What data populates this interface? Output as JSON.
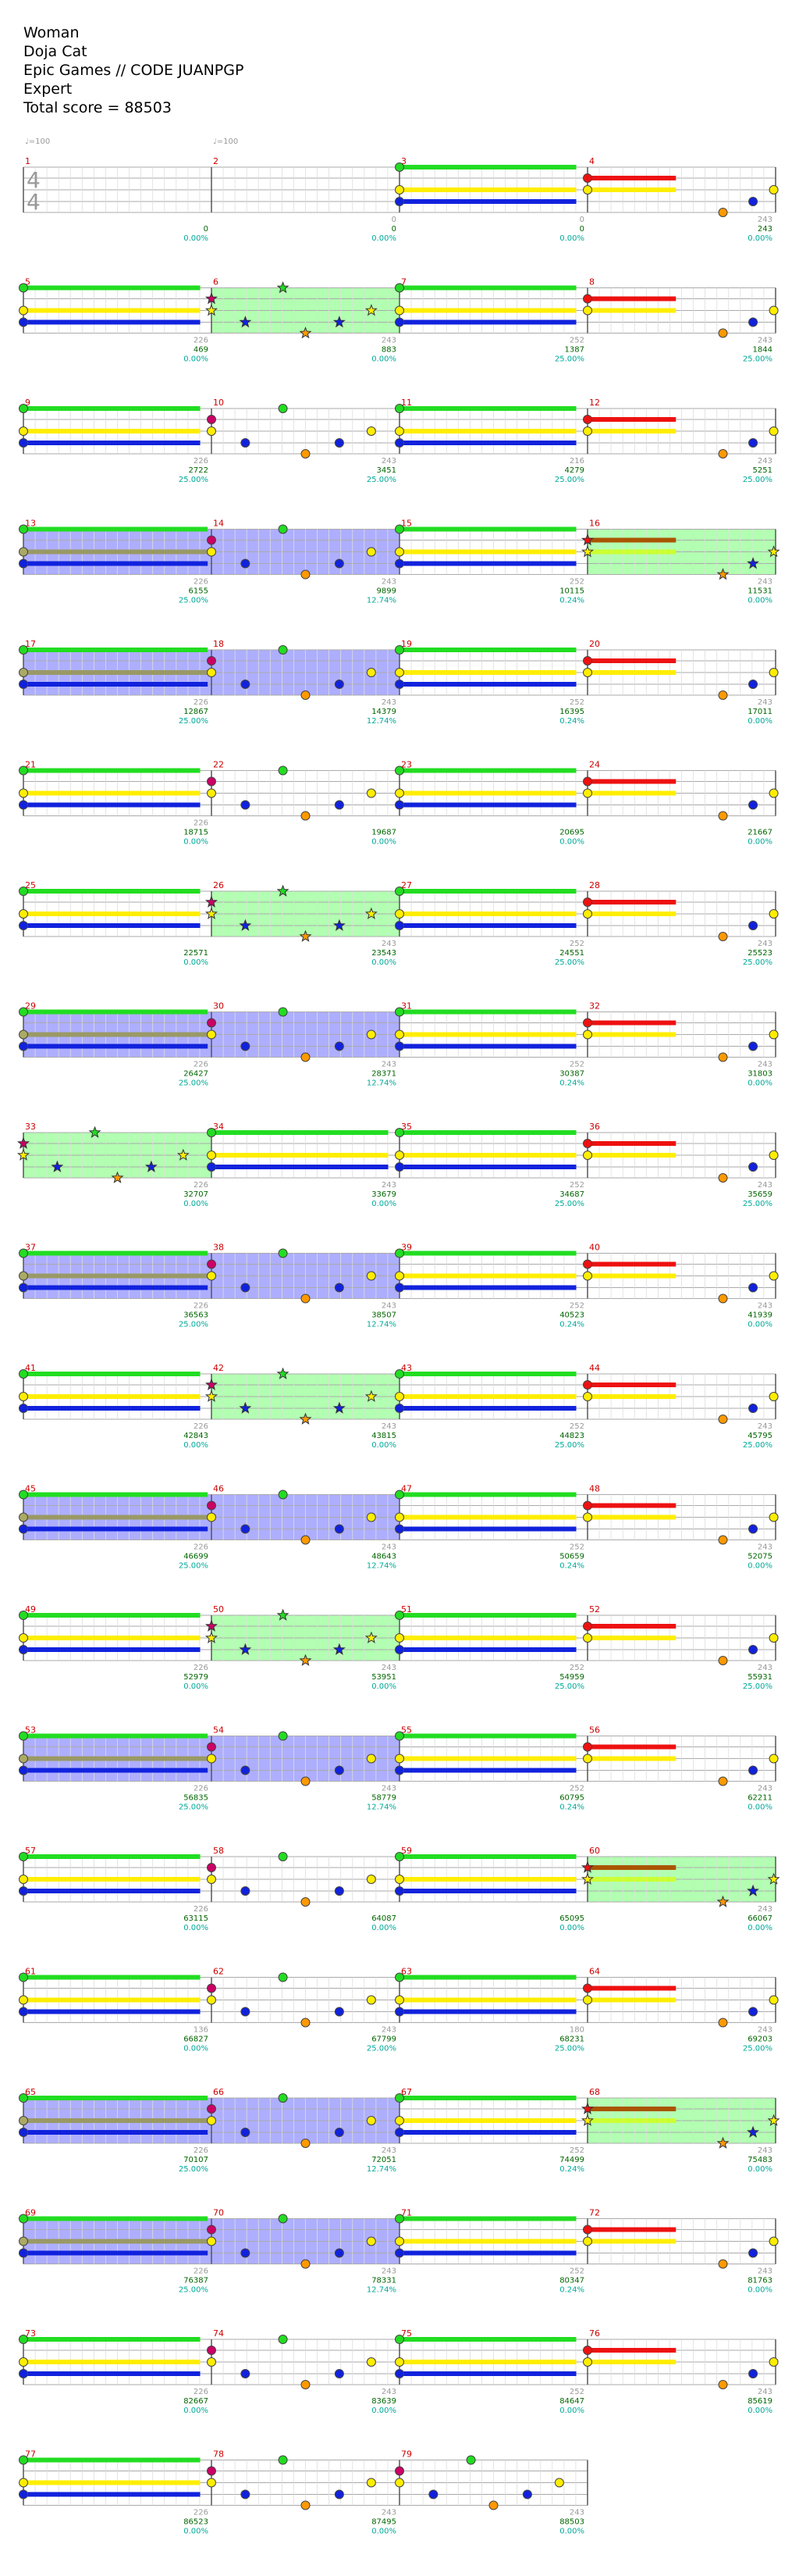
{
  "song": {
    "title": "Woman",
    "artist": "Doja Cat",
    "charter": "Epic Games // CODE JUANPGP",
    "difficulty": "Expert",
    "total_score_label": "Total score = 88503"
  },
  "tempo_markers": [
    {
      "measure": 1,
      "label": "♩=100"
    },
    {
      "measure": 2,
      "label": "♩=100"
    }
  ],
  "time_signature": {
    "measure": 1,
    "numerator": "4",
    "denominator": "4"
  },
  "lane_colors": {
    "green": "#22dd22",
    "red": "#ee1111",
    "yellow": "#ffee00",
    "blue": "#1122dd",
    "orange": "#ff9900"
  },
  "chart_data": {
    "type": "table",
    "columns": [
      "measure",
      "beat_count",
      "cumulative_score",
      "multiplier_label",
      "section"
    ],
    "rows_per_line": 4,
    "measures": [
      {
        "n": 1,
        "ticks": "",
        "score": "0",
        "pct": "0.00%",
        "bg": "none",
        "timesig": true
      },
      {
        "n": 2,
        "ticks": "0",
        "score": "0",
        "pct": "0.00%",
        "bg": "none"
      },
      {
        "n": 3,
        "ticks": "0",
        "score": "0",
        "pct": "0.00%",
        "bg": "none",
        "pat": "A"
      },
      {
        "n": 4,
        "ticks": "243",
        "score": "243",
        "pct": "0.00%",
        "bg": "none",
        "pat": "B"
      },
      {
        "n": 5,
        "ticks": "226",
        "score": "469",
        "pct": "0.00%",
        "bg": "none",
        "pat": "A"
      },
      {
        "n": 6,
        "ticks": "243",
        "score": "883",
        "pct": "0.00%",
        "bg": "green",
        "pat": "C"
      },
      {
        "n": 7,
        "ticks": "252",
        "score": "1387",
        "pct": "25.00%",
        "bg": "none",
        "pat": "A"
      },
      {
        "n": 8,
        "ticks": "243",
        "score": "1844",
        "pct": "25.00%",
        "bg": "none",
        "pat": "B"
      },
      {
        "n": 9,
        "ticks": "226",
        "score": "2722",
        "pct": "25.00%",
        "bg": "none",
        "pat": "A"
      },
      {
        "n": 10,
        "ticks": "243",
        "score": "3451",
        "pct": "25.00%",
        "bg": "none",
        "pat": "D"
      },
      {
        "n": 11,
        "ticks": "216",
        "score": "4279",
        "pct": "25.00%",
        "bg": "none",
        "pat": "A"
      },
      {
        "n": 12,
        "ticks": "243",
        "score": "5251",
        "pct": "25.00%",
        "bg": "none",
        "pat": "B"
      },
      {
        "n": 13,
        "ticks": "226",
        "score": "6155",
        "pct": "25.00%",
        "bg": "blue",
        "pat": "E"
      },
      {
        "n": 14,
        "ticks": "243",
        "score": "9899",
        "pct": "12.74%",
        "bg": "blue",
        "pat": "F"
      },
      {
        "n": 15,
        "ticks": "252",
        "score": "10115",
        "pct": "0.24%",
        "bg": "none",
        "pat": "A"
      },
      {
        "n": 16,
        "ticks": "243",
        "score": "11531",
        "pct": "0.00%",
        "bg": "green",
        "pat": "G"
      },
      {
        "n": 17,
        "ticks": "226",
        "score": "12867",
        "pct": "25.00%",
        "bg": "blue",
        "pat": "E"
      },
      {
        "n": 18,
        "ticks": "243",
        "score": "14379",
        "pct": "12.74%",
        "bg": "blue",
        "pat": "F"
      },
      {
        "n": 19,
        "ticks": "252",
        "score": "16395",
        "pct": "0.24%",
        "bg": "none",
        "pat": "A"
      },
      {
        "n": 20,
        "ticks": "243",
        "score": "17011",
        "pct": "0.00%",
        "bg": "none",
        "pat": "B"
      },
      {
        "n": 21,
        "ticks": "226",
        "score": "18715",
        "pct": "0.00%",
        "bg": "none",
        "pat": "A"
      },
      {
        "n": 22,
        "ticks": "",
        "score": "19687",
        "pct": "0.00%",
        "bg": "none",
        "pat": "D"
      },
      {
        "n": 23,
        "ticks": "",
        "score": "20695",
        "pct": "0.00%",
        "bg": "none",
        "pat": "A"
      },
      {
        "n": 24,
        "ticks": "",
        "score": "21667",
        "pct": "0.00%",
        "bg": "none",
        "pat": "B"
      },
      {
        "n": 25,
        "ticks": "",
        "score": "22571",
        "pct": "0.00%",
        "bg": "none",
        "pat": "A"
      },
      {
        "n": 26,
        "ticks": "243",
        "score": "23543",
        "pct": "0.00%",
        "bg": "green",
        "pat": "C"
      },
      {
        "n": 27,
        "ticks": "252",
        "score": "24551",
        "pct": "25.00%",
        "bg": "none",
        "pat": "A"
      },
      {
        "n": 28,
        "ticks": "243",
        "score": "25523",
        "pct": "25.00%",
        "bg": "none",
        "pat": "B"
      },
      {
        "n": 29,
        "ticks": "226",
        "score": "26427",
        "pct": "25.00%",
        "bg": "blue",
        "pat": "E"
      },
      {
        "n": 30,
        "ticks": "243",
        "score": "28371",
        "pct": "12.74%",
        "bg": "blue",
        "pat": "F"
      },
      {
        "n": 31,
        "ticks": "252",
        "score": "30387",
        "pct": "0.24%",
        "bg": "none",
        "pat": "A"
      },
      {
        "n": 32,
        "ticks": "243",
        "score": "31803",
        "pct": "0.00%",
        "bg": "none",
        "pat": "B"
      },
      {
        "n": 33,
        "ticks": "226",
        "score": "32707",
        "pct": "0.00%",
        "bg": "green",
        "pat": "C"
      },
      {
        "n": 34,
        "ticks": "243",
        "score": "33679",
        "pct": "0.00%",
        "bg": "none",
        "pat": "A"
      },
      {
        "n": 35,
        "ticks": "252",
        "score": "34687",
        "pct": "25.00%",
        "bg": "none",
        "pat": "A"
      },
      {
        "n": 36,
        "ticks": "243",
        "score": "35659",
        "pct": "25.00%",
        "bg": "none",
        "pat": "B"
      },
      {
        "n": 37,
        "ticks": "226",
        "score": "36563",
        "pct": "25.00%",
        "bg": "blue",
        "pat": "E"
      },
      {
        "n": 38,
        "ticks": "243",
        "score": "38507",
        "pct": "12.74%",
        "bg": "blue",
        "pat": "F"
      },
      {
        "n": 39,
        "ticks": "252",
        "score": "40523",
        "pct": "0.24%",
        "bg": "none",
        "pat": "A"
      },
      {
        "n": 40,
        "ticks": "243",
        "score": "41939",
        "pct": "0.00%",
        "bg": "none",
        "pat": "B"
      },
      {
        "n": 41,
        "ticks": "226",
        "score": "42843",
        "pct": "0.00%",
        "bg": "none",
        "pat": "A"
      },
      {
        "n": 42,
        "ticks": "243",
        "score": "43815",
        "pct": "0.00%",
        "bg": "green",
        "pat": "C"
      },
      {
        "n": 43,
        "ticks": "252",
        "score": "44823",
        "pct": "25.00%",
        "bg": "none",
        "pat": "A"
      },
      {
        "n": 44,
        "ticks": "243",
        "score": "45795",
        "pct": "25.00%",
        "bg": "none",
        "pat": "B"
      },
      {
        "n": 45,
        "ticks": "226",
        "score": "46699",
        "pct": "25.00%",
        "bg": "blue",
        "pat": "E"
      },
      {
        "n": 46,
        "ticks": "243",
        "score": "48643",
        "pct": "12.74%",
        "bg": "blue",
        "pat": "F"
      },
      {
        "n": 47,
        "ticks": "252",
        "score": "50659",
        "pct": "0.24%",
        "bg": "none",
        "pat": "A"
      },
      {
        "n": 48,
        "ticks": "243",
        "score": "52075",
        "pct": "0.00%",
        "bg": "none",
        "pat": "B"
      },
      {
        "n": 49,
        "ticks": "226",
        "score": "52979",
        "pct": "0.00%",
        "bg": "none",
        "pat": "A"
      },
      {
        "n": 50,
        "ticks": "243",
        "score": "53951",
        "pct": "0.00%",
        "bg": "green",
        "pat": "C"
      },
      {
        "n": 51,
        "ticks": "252",
        "score": "54959",
        "pct": "25.00%",
        "bg": "none",
        "pat": "A"
      },
      {
        "n": 52,
        "ticks": "243",
        "score": "55931",
        "pct": "25.00%",
        "bg": "none",
        "pat": "B"
      },
      {
        "n": 53,
        "ticks": "226",
        "score": "56835",
        "pct": "25.00%",
        "bg": "blue",
        "pat": "E"
      },
      {
        "n": 54,
        "ticks": "243",
        "score": "58779",
        "pct": "12.74%",
        "bg": "blue",
        "pat": "F"
      },
      {
        "n": 55,
        "ticks": "252",
        "score": "60795",
        "pct": "0.24%",
        "bg": "none",
        "pat": "A"
      },
      {
        "n": 56,
        "ticks": "243",
        "score": "62211",
        "pct": "0.00%",
        "bg": "none",
        "pat": "B"
      },
      {
        "n": 57,
        "ticks": "226",
        "score": "63115",
        "pct": "0.00%",
        "bg": "none",
        "pat": "A"
      },
      {
        "n": 58,
        "ticks": "",
        "score": "64087",
        "pct": "0.00%",
        "bg": "none",
        "pat": "D"
      },
      {
        "n": 59,
        "ticks": "",
        "score": "65095",
        "pct": "0.00%",
        "bg": "none",
        "pat": "A"
      },
      {
        "n": 60,
        "ticks": "243",
        "score": "66067",
        "pct": "0.00%",
        "bg": "green",
        "pat": "G"
      },
      {
        "n": 61,
        "ticks": "136",
        "score": "66827",
        "pct": "0.00%",
        "bg": "none",
        "pat": "A"
      },
      {
        "n": 62,
        "ticks": "243",
        "score": "67799",
        "pct": "25.00%",
        "bg": "none",
        "pat": "D"
      },
      {
        "n": 63,
        "ticks": "180",
        "score": "68231",
        "pct": "25.00%",
        "bg": "none",
        "pat": "A"
      },
      {
        "n": 64,
        "ticks": "243",
        "score": "69203",
        "pct": "25.00%",
        "bg": "none",
        "pat": "B"
      },
      {
        "n": 65,
        "ticks": "226",
        "score": "70107",
        "pct": "25.00%",
        "bg": "blue",
        "pat": "E"
      },
      {
        "n": 66,
        "ticks": "243",
        "score": "72051",
        "pct": "12.74%",
        "bg": "blue",
        "pat": "F"
      },
      {
        "n": 67,
        "ticks": "252",
        "score": "74499",
        "pct": "0.24%",
        "bg": "none",
        "pat": "A"
      },
      {
        "n": 68,
        "ticks": "243",
        "score": "75483",
        "pct": "0.00%",
        "bg": "green",
        "pat": "G"
      },
      {
        "n": 69,
        "ticks": "226",
        "score": "76387",
        "pct": "25.00%",
        "bg": "blue",
        "pat": "E"
      },
      {
        "n": 70,
        "ticks": "243",
        "score": "78331",
        "pct": "12.74%",
        "bg": "blue",
        "pat": "F"
      },
      {
        "n": 71,
        "ticks": "252",
        "score": "80347",
        "pct": "0.24%",
        "bg": "none",
        "pat": "A"
      },
      {
        "n": 72,
        "ticks": "243",
        "score": "81763",
        "pct": "0.00%",
        "bg": "none",
        "pat": "B"
      },
      {
        "n": 73,
        "ticks": "226",
        "score": "82667",
        "pct": "0.00%",
        "bg": "none",
        "pat": "A"
      },
      {
        "n": 74,
        "ticks": "243",
        "score": "83639",
        "pct": "0.00%",
        "bg": "none",
        "pat": "D"
      },
      {
        "n": 75,
        "ticks": "252",
        "score": "84647",
        "pct": "0.00%",
        "bg": "none",
        "pat": "A"
      },
      {
        "n": 76,
        "ticks": "243",
        "score": "85619",
        "pct": "0.00%",
        "bg": "none",
        "pat": "B"
      },
      {
        "n": 77,
        "ticks": "226",
        "score": "86523",
        "pct": "0.00%",
        "bg": "none",
        "pat": "A"
      },
      {
        "n": 78,
        "ticks": "243",
        "score": "87495",
        "pct": "0.00%",
        "bg": "none",
        "pat": "D"
      },
      {
        "n": 79,
        "ticks": "243",
        "score": "88503",
        "pct": "0.00%",
        "bg": "none",
        "pat": "D",
        "end": true
      }
    ]
  }
}
